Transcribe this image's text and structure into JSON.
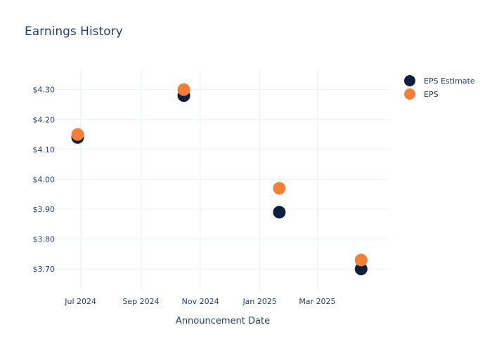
{
  "chart_data": {
    "type": "scatter",
    "title": "Earnings History",
    "xlabel": "Announcement Date",
    "ylabel": "",
    "x_ticks": [
      {
        "date": "2024-07-01",
        "label": "Jul 2024"
      },
      {
        "date": "2024-09-01",
        "label": "Sep 2024"
      },
      {
        "date": "2024-11-01",
        "label": "Nov 2024"
      },
      {
        "date": "2025-01-01",
        "label": "Jan 2025"
      },
      {
        "date": "2025-03-01",
        "label": "Mar 2025"
      }
    ],
    "x_range": [
      "2024-06-06",
      "2025-05-14"
    ],
    "y_ticks": [
      3.7,
      3.8,
      3.9,
      4.0,
      4.1,
      4.2,
      4.3
    ],
    "y_tick_labels": [
      "$3.70",
      "$3.80",
      "$3.90",
      "$4.00",
      "$4.10",
      "$4.20",
      "$4.30"
    ],
    "ylim": [
      3.63,
      4.365
    ],
    "grid": true,
    "legend_position": "top-right",
    "series": [
      {
        "name": "EPS Estimate",
        "color": "#0d1f3f",
        "points": [
          {
            "x": "2024-06-28",
            "y": 4.14
          },
          {
            "x": "2024-10-15",
            "y": 4.28
          },
          {
            "x": "2025-01-21",
            "y": 3.89
          },
          {
            "x": "2025-04-15",
            "y": 3.7
          }
        ]
      },
      {
        "name": "EPS",
        "color": "#f37f3a",
        "points": [
          {
            "x": "2024-06-28",
            "y": 4.15
          },
          {
            "x": "2024-10-15",
            "y": 4.3
          },
          {
            "x": "2025-01-21",
            "y": 3.97
          },
          {
            "x": "2025-04-15",
            "y": 3.73
          }
        ]
      }
    ]
  }
}
